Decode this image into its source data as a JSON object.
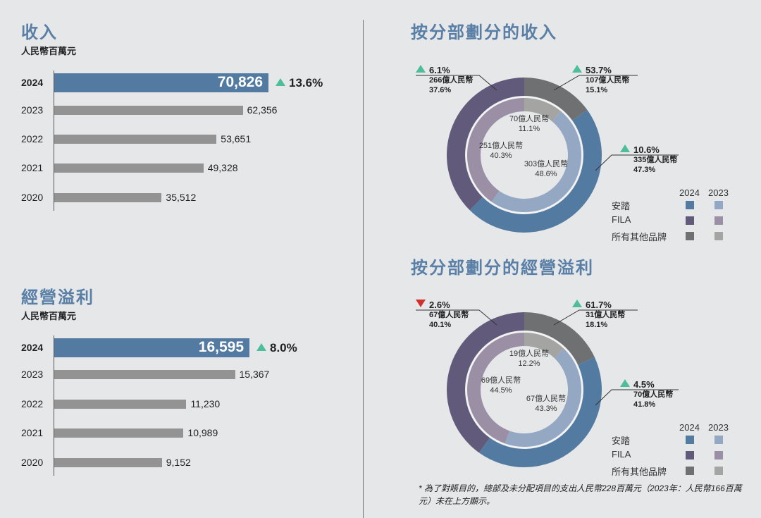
{
  "colors": {
    "title": "#5a7fa6",
    "anta_2024": "#537ba1",
    "anta_2023": "#94a8c4",
    "fila_2024": "#625a7b",
    "fila_2023": "#9a8fa5",
    "other_2024": "#6e7071",
    "other_2023": "#a4a4a2",
    "up": "#4dbd9a",
    "down": "#d0312d",
    "bar_prev": "#939394"
  },
  "chart_data": [
    {
      "type": "bar",
      "title": "收入",
      "unit": "人民幣百萬元",
      "categories": [
        "2024",
        "2023",
        "2022",
        "2021",
        "2020"
      ],
      "values": [
        70826,
        62356,
        53651,
        49328,
        35512
      ],
      "labels": [
        "70,826",
        "62,356",
        "53,651",
        "49,328",
        "35,512"
      ],
      "growth": "13.6%",
      "growth_dir": "up",
      "xlim": [
        0,
        70826
      ]
    },
    {
      "type": "bar",
      "title": "經營溢利",
      "unit": "人民幣百萬元",
      "categories": [
        "2024",
        "2023",
        "2022",
        "2021",
        "2020"
      ],
      "values": [
        16595,
        15367,
        11230,
        10989,
        9152
      ],
      "labels": [
        "16,595",
        "15,367",
        "11,230",
        "10,989",
        "9,152"
      ],
      "growth": "8.0%",
      "growth_dir": "up",
      "xlim": [
        0,
        16595
      ]
    },
    {
      "type": "pie",
      "title": "按分部劃分的收入",
      "segments": [
        "安踏",
        "FILA",
        "所有其他品牌"
      ],
      "outer_2024": [
        {
          "name": "安踏",
          "pct": 47.3,
          "amount": "335億人民幣",
          "growth": "10.6%",
          "dir": "up"
        },
        {
          "name": "FILA",
          "pct": 37.6,
          "amount": "266億人民幣",
          "growth": "6.1%",
          "dir": "up"
        },
        {
          "name": "所有其他品牌",
          "pct": 15.1,
          "amount": "107億人民幣",
          "growth": "53.7%",
          "dir": "up"
        }
      ],
      "inner_2023": [
        {
          "name": "安踏",
          "pct": 48.6,
          "amount": "303億人民幣"
        },
        {
          "name": "FILA",
          "pct": 40.3,
          "amount": "251億人民幣"
        },
        {
          "name": "所有其他品牌",
          "pct": 11.1,
          "amount": "70億人民幣"
        }
      ]
    },
    {
      "type": "pie",
      "title": "按分部劃分的經營溢利",
      "segments": [
        "安踏",
        "FILA",
        "所有其他品牌"
      ],
      "outer_2024": [
        {
          "name": "安踏",
          "pct": 41.8,
          "amount": "70億人民幣",
          "growth": "4.5%",
          "dir": "up"
        },
        {
          "name": "FILA",
          "pct": 40.1,
          "amount": "67億人民幣",
          "growth": "2.6%",
          "dir": "down"
        },
        {
          "name": "所有其他品牌",
          "pct": 18.1,
          "amount": "31億人民幣",
          "growth": "61.7%",
          "dir": "up"
        }
      ],
      "inner_2023": [
        {
          "name": "安踏",
          "pct": 43.3,
          "amount": "67億人民幣"
        },
        {
          "name": "FILA",
          "pct": 44.5,
          "amount": "69億人民幣"
        },
        {
          "name": "所有其他品牌",
          "pct": 12.2,
          "amount": "19億人民幣"
        }
      ]
    }
  ],
  "legend": {
    "year_2024": "2024",
    "year_2023": "2023",
    "items": [
      "安踏",
      "FILA",
      "所有其他品牌"
    ]
  },
  "footnote": "* 為了對賬目的，總部及未分配項目的支出人民幣228百萬元（2023年：人民幣166百萬元）未在上方顯示。"
}
